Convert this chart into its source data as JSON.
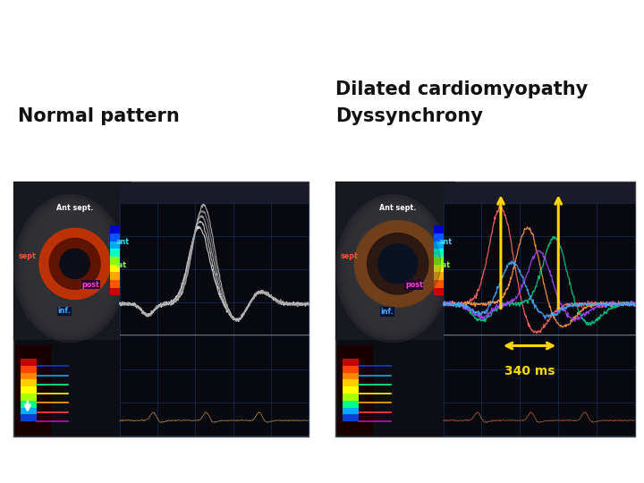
{
  "title_left": "Normal pattern",
  "title_right_line1": "Dilated cardiomyopathy",
  "title_right_line2": "Dyssynchrony",
  "bg_color": "#ffffff",
  "title_fontsize": 15,
  "title_font_weight": "bold",
  "panel_bg": "#0d0d14",
  "annotation_text": "340 ms",
  "annotation_color": "#FFD700",
  "grid_color": "#1a3a6a",
  "waveform_colors_normal": [
    "#e8e8e8",
    "#cccccc",
    "#aaaaaa",
    "#888888",
    "#bbbbbb"
  ],
  "waveform_colors_dcm": [
    "#ff6666",
    "#ff9944",
    "#00cc88",
    "#aa44ff",
    "#44aaff"
  ],
  "colorbar_top_to_bottom": [
    "#0033cc",
    "#0066ff",
    "#00aaff",
    "#00ccff",
    "#00ffcc",
    "#88ff44",
    "#ffff00",
    "#ffaa00",
    "#ff4400",
    "#cc0000"
  ],
  "echo_bg": "#1a1a2a",
  "echo_bg2": "#151520"
}
